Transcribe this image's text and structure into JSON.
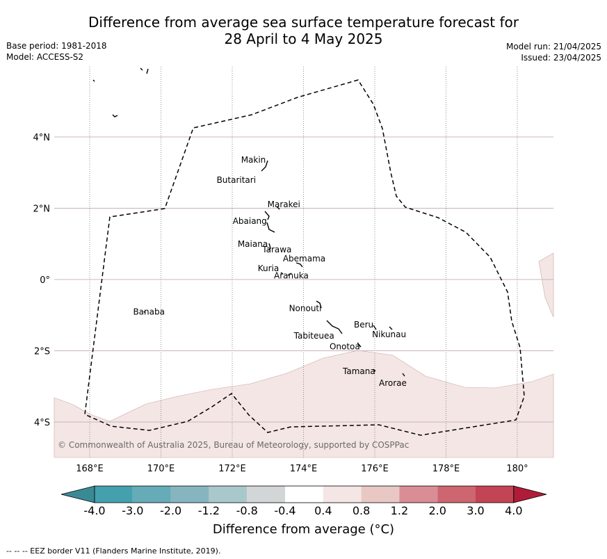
{
  "title": {
    "line1": "Difference from average sea surface temperature forecast for",
    "line2": "28 April to 4 May 2025"
  },
  "meta_left": {
    "base_period": "Base period: 1981-2018",
    "model": "Model: ACCESS-S2"
  },
  "meta_right": {
    "model_run": "Model run: 21/04/2025",
    "issued": "Issued: 23/04/2025"
  },
  "map": {
    "lon_range": [
      167,
      181
    ],
    "lat_range": [
      -5,
      6
    ],
    "lon_ticks": [
      {
        "lon": 168,
        "label": "168°E"
      },
      {
        "lon": 170,
        "label": "170°E"
      },
      {
        "lon": 172,
        "label": "172°E"
      },
      {
        "lon": 174,
        "label": "174°E"
      },
      {
        "lon": 176,
        "label": "176°E"
      },
      {
        "lon": 178,
        "label": "178°E"
      },
      {
        "lon": 180,
        "label": "180°"
      }
    ],
    "lat_ticks": [
      {
        "lat": 4,
        "label": "4°N"
      },
      {
        "lat": 2,
        "label": "2°N"
      },
      {
        "lat": 0,
        "label": "0°"
      },
      {
        "lat": -2,
        "label": "2°S"
      },
      {
        "lat": -4,
        "label": "4°S"
      }
    ],
    "islands": [
      {
        "name": "Makin",
        "lon": 172.95,
        "lat": 3.2
      },
      {
        "name": "Butaritari",
        "lon": 172.85,
        "lat": 2.95
      },
      {
        "name": "Marakei",
        "lon": 173.3,
        "lat": 1.95
      },
      {
        "name": "Abaiang",
        "lon": 172.95,
        "lat": 1.8
      },
      {
        "name": "Tarawa",
        "lon": 173.0,
        "lat": 1.35
      },
      {
        "name": "Maiana",
        "lon": 173.05,
        "lat": 0.9
      },
      {
        "name": "Abemama",
        "lon": 173.85,
        "lat": 0.35
      },
      {
        "name": "Kuria",
        "lon": 173.4,
        "lat": 0.2
      },
      {
        "name": "Aranuka",
        "lon": 173.6,
        "lat": 0.15
      },
      {
        "name": "Banaba",
        "lon": 169.55,
        "lat": -0.85
      },
      {
        "name": "Nonouti",
        "lon": 174.45,
        "lat": -0.65
      },
      {
        "name": "Tabiteuea",
        "lon": 174.9,
        "lat": -1.35
      },
      {
        "name": "Beru",
        "lon": 176.0,
        "lat": -1.35
      },
      {
        "name": "Nikunau",
        "lon": 176.45,
        "lat": -1.35
      },
      {
        "name": "Onotoa",
        "lon": 175.55,
        "lat": -1.8
      },
      {
        "name": "Tamana",
        "lon": 176.0,
        "lat": -2.5
      },
      {
        "name": "Arorae",
        "lon": 176.8,
        "lat": -2.65
      }
    ],
    "copyright": "© Commonwealth of Australia 2025, Bureau of Meteorology, supported by COSPPac"
  },
  "colorbar": {
    "ticks": [
      "-4.0",
      "-3.0",
      "-2.0",
      "-1.2",
      "-0.8",
      "-0.4",
      "0.4",
      "0.8",
      "1.2",
      "2.0",
      "3.0",
      "4.0"
    ],
    "colors": [
      "#3a8a96",
      "#45a0ae",
      "#66abb8",
      "#86b5c0",
      "#a9c8cc",
      "#d2d6d6",
      "#ffffff",
      "#f4e6e4",
      "#e9c8c4",
      "#da8d95",
      "#cd6670",
      "#c34454",
      "#b01c38"
    ],
    "anomaly_fill_color": "#f4e6e4",
    "title": "Difference from average (°C)"
  },
  "footer": "-- -- -- EEZ border V11 (Flanders Marine Institute, 2019)."
}
